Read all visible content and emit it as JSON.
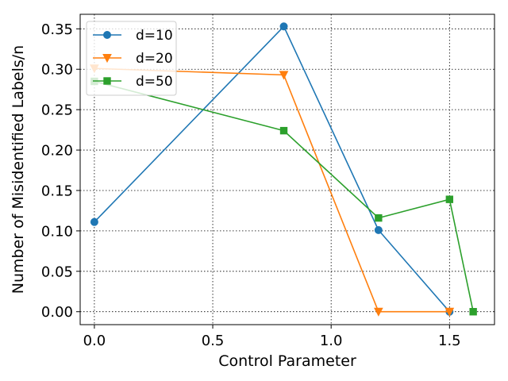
{
  "chart_data": {
    "type": "line",
    "title": "",
    "xlabel": "Control Parameter",
    "ylabel": "Number of Misidentified Labels/n",
    "xlim": [
      -0.06,
      1.69
    ],
    "ylim": [
      -0.016,
      0.368
    ],
    "xticks": [
      0.0,
      0.5,
      1.0,
      1.5
    ],
    "xtick_labels": [
      "0.0",
      "0.5",
      "1.0",
      "1.5"
    ],
    "yticks": [
      0.0,
      0.05,
      0.1,
      0.15,
      0.2,
      0.25,
      0.3,
      0.35
    ],
    "ytick_labels": [
      "0.00",
      "0.05",
      "0.10",
      "0.15",
      "0.20",
      "0.25",
      "0.30",
      "0.35"
    ],
    "grid": true,
    "grid_style": "dotted",
    "legend_position": "upper-left",
    "series": [
      {
        "name": "d=10",
        "color": "#1f77b4",
        "marker": "circle",
        "x": [
          0.0,
          0.8,
          1.2,
          1.5
        ],
        "y": [
          0.111,
          0.353,
          0.101,
          0.0
        ]
      },
      {
        "name": "d=20",
        "color": "#ff7f0e",
        "marker": "triangle-down",
        "x": [
          0.0,
          0.8,
          1.2,
          1.5
        ],
        "y": [
          0.301,
          0.293,
          0.0,
          0.0
        ]
      },
      {
        "name": "d=50",
        "color": "#2ca02c",
        "marker": "square",
        "x": [
          0.0,
          0.8,
          1.2,
          1.5,
          1.6
        ],
        "y": [
          0.285,
          0.224,
          0.116,
          0.139,
          0.0
        ]
      }
    ]
  }
}
